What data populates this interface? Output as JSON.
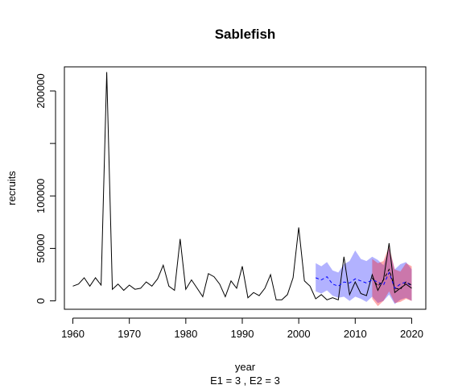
{
  "chart_data": {
    "type": "line",
    "title": "Sablefish",
    "xlabel": "year",
    "xlabel_sub": "E1 = 3 , E2 = 3",
    "ylabel": "recruits",
    "xlim": [
      1958.5,
      2022.5
    ],
    "ylim": [
      -8000,
      223000
    ],
    "x_ticks": [
      1960,
      1970,
      1980,
      1990,
      2000,
      2010,
      2020
    ],
    "y_ticks": [
      0,
      50000,
      100000,
      150000,
      200000
    ],
    "y_tick_labels": [
      "0",
      "50000",
      "100000",
      "",
      "200000"
    ],
    "grid": false,
    "series": [
      {
        "style": "solid",
        "color": "#000000",
        "x": [
          1960,
          1961,
          1962,
          1963,
          1964,
          1965,
          1966,
          1967,
          1968,
          1969,
          1970,
          1971,
          1972,
          1973,
          1974,
          1975,
          1976,
          1977,
          1978,
          1979,
          1980,
          1981,
          1982,
          1983,
          1984,
          1985,
          1986,
          1987,
          1988,
          1989,
          1990,
          1991,
          1992,
          1993,
          1994,
          1995,
          1996,
          1997,
          1998,
          1999,
          2000,
          2001,
          2002,
          2003,
          2004,
          2005,
          2006,
          2007,
          2008,
          2009,
          2010,
          2011,
          2012,
          2013,
          2014,
          2015,
          2016,
          2017,
          2018,
          2019,
          2020
        ],
        "values": [
          14000,
          16000,
          22000,
          14000,
          22000,
          15000,
          218000,
          11000,
          16000,
          10000,
          15000,
          11000,
          12000,
          18000,
          14000,
          21000,
          34000,
          14000,
          10000,
          59000,
          11000,
          20000,
          12000,
          4000,
          26000,
          23000,
          16000,
          4000,
          19000,
          12000,
          33000,
          3000,
          8000,
          5000,
          12000,
          25000,
          1000,
          1000,
          6000,
          22000,
          70000,
          19000,
          14000,
          2000,
          6000,
          1000,
          3000,
          1000,
          42000,
          6000,
          18000,
          7000,
          5000,
          25000,
          10000,
          20000,
          55000,
          8000,
          12000,
          16000,
          12000
        ]
      },
      {
        "style": "dashed",
        "color": "#0000ff",
        "x": [
          2003,
          2004,
          2005,
          2006,
          2007,
          2008,
          2009,
          2010,
          2011,
          2012,
          2013,
          2014,
          2015,
          2016,
          2017,
          2018,
          2019,
          2020
        ],
        "values": [
          22000,
          20000,
          23000,
          16000,
          14000,
          18000,
          17000,
          21000,
          19000,
          17000,
          20000,
          18000,
          15000,
          27000,
          12000,
          16000,
          18000,
          14000
        ],
        "band_lower": [
          9000,
          7000,
          10000,
          5000,
          3000,
          4000,
          0,
          4000,
          2000,
          -1000,
          4000,
          -2000,
          0,
          6000,
          -3000,
          1000,
          3000,
          0
        ],
        "band_upper": [
          36000,
          33000,
          37000,
          29000,
          27000,
          35000,
          38000,
          48000,
          40000,
          38000,
          42000,
          39000,
          34000,
          50000,
          30000,
          35000,
          37000,
          30000
        ],
        "band_color": "#0000ff",
        "band_opacity": 0.3
      },
      {
        "style": "dashed",
        "color": "#000000",
        "x": [
          2013,
          2014,
          2015,
          2016,
          2017,
          2018,
          2019,
          2020
        ],
        "values": [
          22000,
          14000,
          20000,
          30000,
          12000,
          11000,
          18000,
          15000
        ],
        "band_lower": [
          2000,
          -5000,
          0,
          9000,
          -2000,
          -1000,
          2000,
          0
        ],
        "band_upper": [
          40000,
          36000,
          38000,
          52000,
          30000,
          28000,
          36000,
          33000
        ],
        "band_color": "#ff0000",
        "band_opacity": 0.33
      }
    ]
  }
}
